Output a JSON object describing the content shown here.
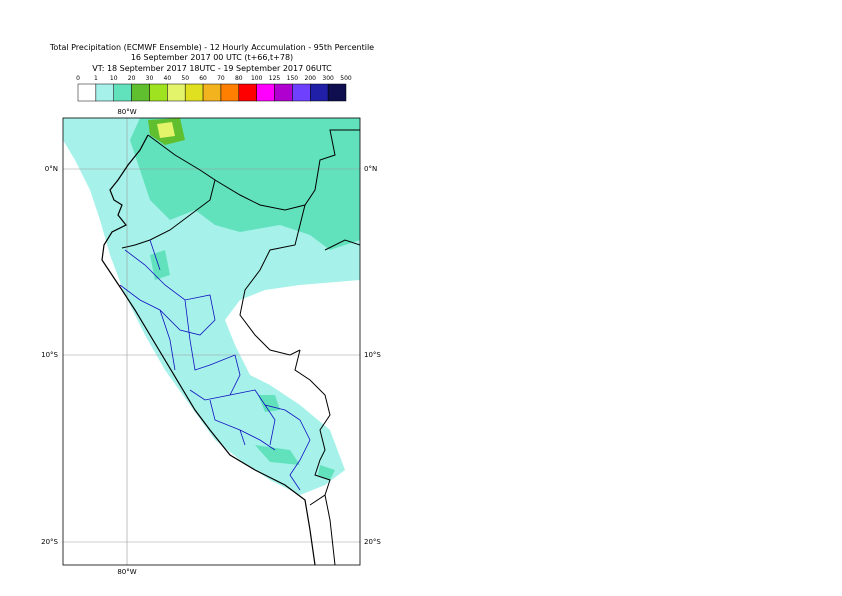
{
  "header": {
    "lines": [
      "Total Precipitation (ECMWF Ensemble) - 12 Hourly Accumulation - 95th Percentile",
      "16 September 2017 00 UTC (t+66,t+78)",
      "VT: 18 September 2017 18UTC - 19 September 2017 06UTC"
    ]
  },
  "legend": {
    "labels": [
      0,
      1,
      10,
      20,
      30,
      40,
      50,
      60,
      70,
      80,
      100,
      125,
      150,
      200,
      300,
      500
    ],
    "colors": [
      "#ffffff",
      "#a6f2ea",
      "#62e2bc",
      "#5fbf2f",
      "#9fe21f",
      "#e3f46a",
      "#e0e020",
      "#f2b31f",
      "#ff8000",
      "#ff0000",
      "#ff00ff",
      "#b000d0",
      "#7040ff",
      "#1f1fa8",
      "#0f0f4f"
    ]
  },
  "map": {
    "lon_labels": [
      "80°W"
    ],
    "lat_labels": [
      "0°N",
      "10°S",
      "20°S"
    ]
  }
}
